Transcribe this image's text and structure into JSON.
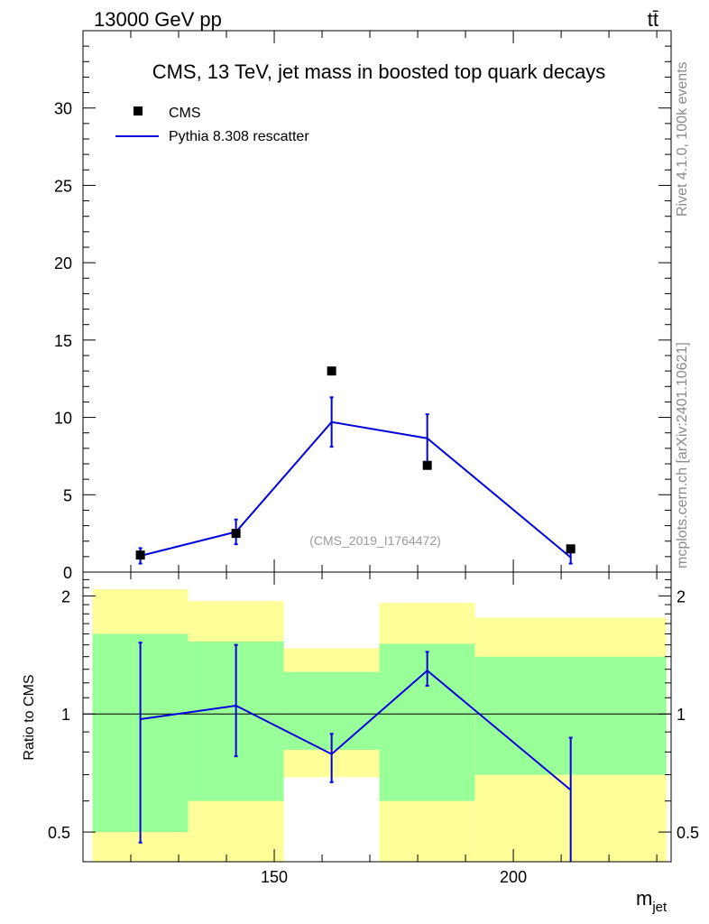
{
  "header": {
    "energy_label": "13000 GeV pp",
    "process_label": "tt̄"
  },
  "side": {
    "rivet_label": "Rivet 4.1.0,  100k events",
    "mcplots_label": "mcplots.cern.ch [arXiv:2401.10621]"
  },
  "colors": {
    "mc": "#0000dd",
    "data": "#000000",
    "band_green": "#99ff99",
    "band_yellow": "#ffff99"
  },
  "chart_data": [
    {
      "type": "line",
      "title": "CMS, 13 TeV, jet mass in boosted top quark decays",
      "watermark": "(CMS_2019_I1764472)",
      "xlabel": "m_jet",
      "xlabel_main": "m",
      "xlabel_sub": "jet",
      "ylabel": "",
      "xlim": [
        110,
        233
      ],
      "ylim": [
        0,
        35
      ],
      "yticks": [
        0,
        5,
        10,
        15,
        20,
        25,
        30
      ],
      "ytick_labels": [
        "0",
        "5",
        "10",
        "15",
        "20",
        "25",
        "30"
      ],
      "bin_edges": [
        112,
        132,
        152,
        172,
        192,
        232
      ],
      "legend": [
        "CMS",
        "Pythia 8.308 rescatter"
      ],
      "series": [
        {
          "name": "CMS",
          "marker": "square",
          "x": [
            122,
            142,
            162,
            182,
            212
          ],
          "y": [
            1.1,
            2.5,
            13.0,
            6.9,
            1.5
          ],
          "err": [
            0.2,
            0.3,
            0.5,
            0.4,
            0.2
          ]
        },
        {
          "name": "Pythia 8.308 rescatter",
          "marker": "line",
          "x": [
            122,
            142,
            162,
            182,
            212
          ],
          "y": [
            1.05,
            2.6,
            9.7,
            8.65,
            0.95
          ],
          "err": [
            0.5,
            0.8,
            1.6,
            1.55,
            0.4
          ]
        }
      ]
    },
    {
      "type": "line",
      "ylabel": "Ratio to CMS",
      "xlim": [
        110,
        233
      ],
      "ylim": [
        0.42,
        2.3
      ],
      "yscale": "log",
      "yticks": [
        0.5,
        1,
        2
      ],
      "ytick_labels": [
        "0.5",
        "1",
        "2"
      ],
      "xticks": [
        150,
        200
      ],
      "xtick_labels": [
        "150",
        "200"
      ],
      "reference_line": 1,
      "bin_edges": [
        112,
        132,
        152,
        172,
        192,
        232
      ],
      "band_green": [
        [
          0.5,
          1.6
        ],
        [
          0.6,
          1.53
        ],
        [
          0.81,
          1.28
        ],
        [
          0.6,
          1.51
        ],
        [
          0.7,
          1.4
        ]
      ],
      "band_yellow": [
        [
          0.42,
          2.08
        ],
        [
          0.42,
          1.94
        ],
        [
          0.69,
          1.47
        ],
        [
          0.42,
          1.92
        ],
        [
          0.42,
          1.76
        ]
      ],
      "series": [
        {
          "name": "Pythia 8.308 rescatter",
          "x": [
            122,
            142,
            162,
            182,
            212
          ],
          "y": [
            0.97,
            1.05,
            0.79,
            1.29,
            0.64
          ],
          "err_low": [
            0.5,
            0.27,
            0.12,
            0.11,
            0.64
          ],
          "err_high": [
            0.55,
            0.45,
            0.1,
            0.15,
            0.23
          ]
        }
      ]
    }
  ]
}
